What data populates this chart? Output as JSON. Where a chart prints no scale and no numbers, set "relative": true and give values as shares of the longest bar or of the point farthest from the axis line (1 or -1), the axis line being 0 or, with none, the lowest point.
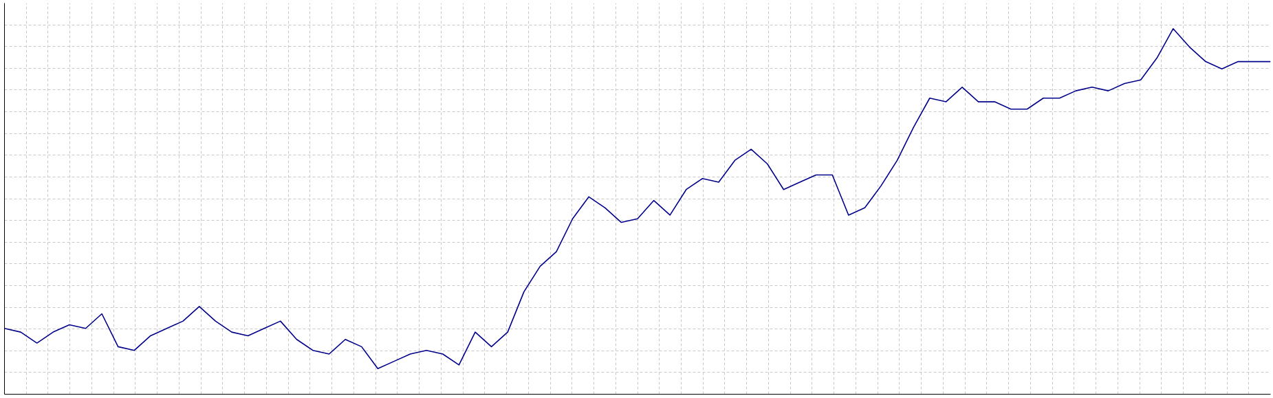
{
  "chart_data": {
    "type": "line",
    "relative": true,
    "grid": true,
    "line_style": "solid",
    "categories": [
      null,
      null,
      null,
      null,
      null,
      null,
      null,
      null,
      null,
      null,
      null,
      null,
      null,
      null,
      null,
      null,
      null,
      null,
      null,
      null,
      null,
      null,
      null,
      null,
      null,
      null,
      null,
      null,
      null,
      null,
      null,
      null,
      null,
      null,
      null,
      null,
      null,
      null,
      null,
      null,
      null,
      null,
      null,
      null,
      null,
      null,
      null,
      null,
      null,
      null,
      null,
      null,
      null,
      null,
      null,
      null,
      null,
      null,
      null,
      null,
      null,
      null,
      null,
      null,
      null,
      null,
      null,
      null,
      null,
      null,
      null,
      null,
      null,
      null,
      null,
      null,
      null,
      null,
      null
    ],
    "series": [
      {
        "color": "#00008b",
        "values": [
          0.18,
          0.17,
          0.14,
          0.17,
          0.19,
          0.18,
          0.22,
          0.13,
          0.12,
          0.16,
          0.18,
          0.2,
          0.24,
          0.2,
          0.17,
          0.16,
          0.18,
          0.2,
          0.15,
          0.12,
          0.11,
          0.15,
          0.13,
          0.07,
          0.09,
          0.11,
          0.12,
          0.11,
          0.08,
          0.17,
          0.13,
          0.17,
          0.28,
          0.35,
          0.39,
          0.48,
          0.54,
          0.51,
          0.47,
          0.48,
          0.53,
          0.49,
          0.56,
          0.59,
          0.58,
          0.64,
          0.67,
          0.63,
          0.56,
          0.58,
          0.6,
          0.6,
          0.49,
          0.51,
          0.57,
          0.64,
          0.73,
          0.81,
          0.8,
          0.84,
          0.8,
          0.8,
          0.78,
          0.78,
          0.81,
          0.81,
          0.83,
          0.84,
          0.83,
          0.85,
          0.86,
          0.92,
          1.0,
          0.95,
          0.91,
          0.89,
          0.91,
          0.91,
          0.91
        ]
      }
    ]
  }
}
